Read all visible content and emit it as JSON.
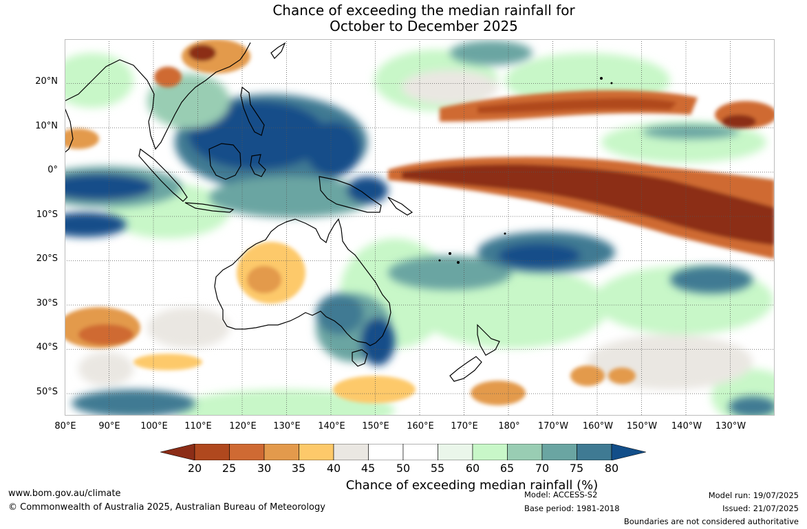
{
  "title": {
    "line1": "Chance of exceeding the median rainfall for",
    "line2": "October to December 2025"
  },
  "map": {
    "lat_labels": [
      "20°N",
      "10°N",
      "0°",
      "10°S",
      "20°S",
      "30°S",
      "40°S",
      "50°S"
    ],
    "lon_labels": [
      "80°E",
      "90°E",
      "100°E",
      "110°E",
      "120°E",
      "130°E",
      "140°E",
      "150°E",
      "160°E",
      "170°E",
      "180°",
      "170°W",
      "160°W",
      "150°W",
      "140°W",
      "130°W"
    ],
    "grid": "dotted",
    "projection": "equirectangular"
  },
  "colorbar": {
    "ticks": [
      "20",
      "25",
      "30",
      "35",
      "40",
      "45",
      "50",
      "55",
      "60",
      "65",
      "70",
      "75",
      "80"
    ],
    "colors": [
      "#8c2d17",
      "#b0481e",
      "#cf6a33",
      "#e39a4c",
      "#fdc96a",
      "#eae7e2",
      "#ffffff",
      "#ffffff",
      "#eaf6ea",
      "#c8f7c8",
      "#99cdb3",
      "#6aa5a2",
      "#3f7a93",
      "#124e89"
    ],
    "label": "Chance of exceeding median rainfall (%)"
  },
  "footer": {
    "website": "www.bom.gov.au/climate",
    "copyright": "© Commonwealth of Australia 2025, Australian Bureau of Meteorology",
    "model": "Model: ACCESS-S2",
    "base_period": "Base period: 1981-2018",
    "model_run": "Model run: 19/07/2025",
    "issued": "Issued: 21/07/2025",
    "disclaimer": "Boundaries are not considered authoritative"
  }
}
